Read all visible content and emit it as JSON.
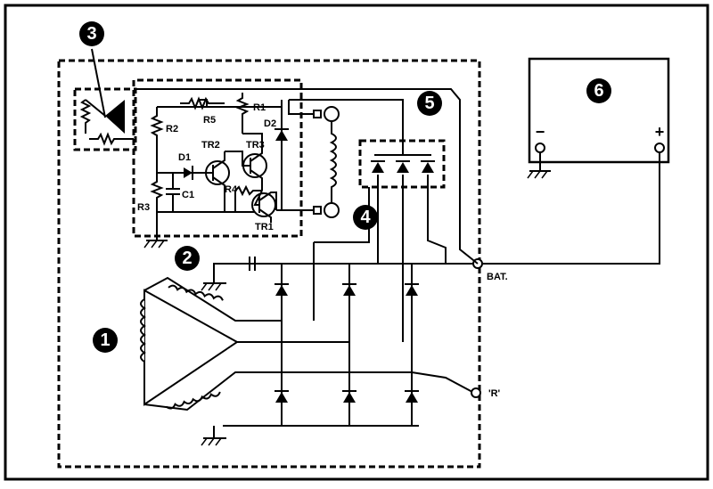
{
  "badges": {
    "b1": "1",
    "b2": "2",
    "b3": "3",
    "b4": "4",
    "b5": "5",
    "b6": "6"
  },
  "components": {
    "r1": "R1",
    "r2": "R2",
    "r3": "R3",
    "r4": "R4",
    "r5": "R5",
    "d1": "D1",
    "d2": "D2",
    "c1": "C1",
    "tr1": "TR1",
    "tr2": "TR2",
    "tr3": "TR3"
  },
  "terminals": {
    "bat": "BAT.",
    "r": "'R'"
  },
  "battery": {
    "minus": "−",
    "plus": "+"
  }
}
